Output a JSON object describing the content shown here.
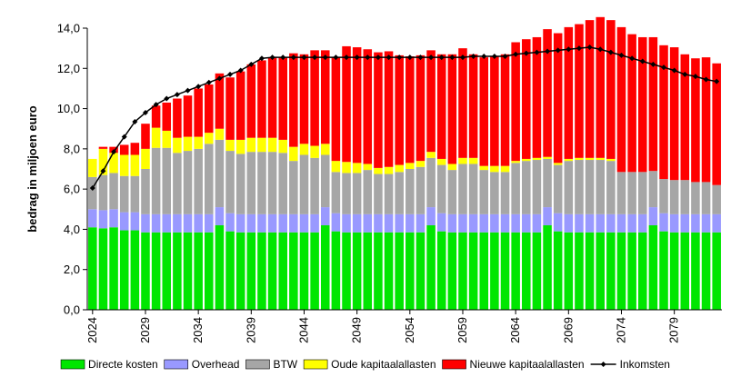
{
  "chart_data": {
    "type": "bar",
    "stacked": true,
    "ylabel": "bedrag in miljoen euro",
    "ylim": [
      0,
      14
    ],
    "y_ticks": [
      "0,0",
      "2,0",
      "4,0",
      "6,0",
      "8,0",
      "10,0",
      "12,0",
      "14,0"
    ],
    "grid": false,
    "legend_position": "bottom",
    "x": [
      2024,
      2025,
      2026,
      2027,
      2028,
      2029,
      2030,
      2031,
      2032,
      2033,
      2034,
      2035,
      2036,
      2037,
      2038,
      2039,
      2040,
      2041,
      2042,
      2043,
      2044,
      2045,
      2046,
      2047,
      2048,
      2049,
      2050,
      2051,
      2052,
      2053,
      2054,
      2055,
      2056,
      2057,
      2058,
      2059,
      2060,
      2061,
      2062,
      2063,
      2064,
      2065,
      2066,
      2067,
      2068,
      2069,
      2070,
      2071,
      2072,
      2073,
      2074,
      2075,
      2076,
      2077,
      2078,
      2079,
      2080,
      2081,
      2082,
      2083
    ],
    "x_tick_labels": [
      "2024",
      "2029",
      "2034",
      "2039",
      "2044",
      "2049",
      "2054",
      "2059",
      "2064",
      "2069",
      "2074",
      "2079"
    ],
    "series": [
      {
        "name": "Directe kosten",
        "color": "#00e600",
        "values": [
          4.1,
          4.05,
          4.1,
          3.95,
          3.95,
          3.85,
          3.85,
          3.85,
          3.85,
          3.85,
          3.85,
          3.85,
          4.2,
          3.9,
          3.85,
          3.85,
          3.85,
          3.85,
          3.85,
          3.85,
          3.85,
          3.85,
          4.2,
          3.9,
          3.85,
          3.85,
          3.85,
          3.85,
          3.85,
          3.85,
          3.85,
          3.85,
          4.2,
          3.9,
          3.85,
          3.85,
          3.85,
          3.85,
          3.85,
          3.85,
          3.85,
          3.85,
          3.85,
          4.2,
          3.9,
          3.85,
          3.85,
          3.85,
          3.85,
          3.85,
          3.85,
          3.85,
          3.85,
          4.2,
          3.9,
          3.85,
          3.85,
          3.85,
          3.85,
          3.85
        ]
      },
      {
        "name": "Overhead",
        "color": "#9999ff",
        "values": [
          0.9,
          0.9,
          0.9,
          0.9,
          0.9,
          0.9,
          0.9,
          0.9,
          0.9,
          0.9,
          0.9,
          0.9,
          0.9,
          0.9,
          0.9,
          0.9,
          0.9,
          0.9,
          0.9,
          0.9,
          0.9,
          0.9,
          0.9,
          0.9,
          0.9,
          0.9,
          0.9,
          0.9,
          0.9,
          0.9,
          0.9,
          0.9,
          0.9,
          0.9,
          0.9,
          0.9,
          0.9,
          0.9,
          0.9,
          0.9,
          0.9,
          0.9,
          0.9,
          0.9,
          0.9,
          0.9,
          0.9,
          0.9,
          0.9,
          0.9,
          0.9,
          0.9,
          0.9,
          0.9,
          0.9,
          0.9,
          0.9,
          0.9,
          0.9,
          0.9
        ]
      },
      {
        "name": "BTW",
        "color": "#a6a6a6",
        "values": [
          1.6,
          1.75,
          1.8,
          1.8,
          1.8,
          2.25,
          3.3,
          3.3,
          3.05,
          3.15,
          3.25,
          3.5,
          3.35,
          3.1,
          3.0,
          3.1,
          3.1,
          3.1,
          3.05,
          2.65,
          2.95,
          2.8,
          2.6,
          2.05,
          2.05,
          2.05,
          2.2,
          2.0,
          2.0,
          2.1,
          2.25,
          2.35,
          2.45,
          2.4,
          2.2,
          2.5,
          2.5,
          2.2,
          2.1,
          2.1,
          2.55,
          2.65,
          2.7,
          2.4,
          2.4,
          2.65,
          2.7,
          2.7,
          2.7,
          2.65,
          2.1,
          2.1,
          2.1,
          1.8,
          1.7,
          1.7,
          1.7,
          1.6,
          1.6,
          1.45
        ]
      },
      {
        "name": "Oude kapitaalallasten",
        "color": "#ffff00",
        "values": [
          0.9,
          1.3,
          1.0,
          1.05,
          1.05,
          1.0,
          1.0,
          0.85,
          0.75,
          0.7,
          0.6,
          0.55,
          0.55,
          0.55,
          0.7,
          0.7,
          0.7,
          0.7,
          0.65,
          0.7,
          0.55,
          0.6,
          0.55,
          0.55,
          0.55,
          0.5,
          0.3,
          0.3,
          0.35,
          0.35,
          0.3,
          0.3,
          0.3,
          0.3,
          0.3,
          0.3,
          0.3,
          0.2,
          0.3,
          0.3,
          0.1,
          0.1,
          0.1,
          0.1,
          0.1,
          0.1,
          0.1,
          0.1,
          0.1,
          0.1,
          0.0,
          0.0,
          0.0,
          0.0,
          0.0,
          0.0,
          0.0,
          0.0,
          0.0,
          0.0
        ]
      },
      {
        "name": "Nieuwe kapitaalallasten",
        "color": "#ff0000",
        "values": [
          0.0,
          0.1,
          0.3,
          0.5,
          0.6,
          1.25,
          1.1,
          1.4,
          1.95,
          2.05,
          2.4,
          2.4,
          2.75,
          3.1,
          3.4,
          3.65,
          3.85,
          4.0,
          4.1,
          4.65,
          4.45,
          4.75,
          4.65,
          5.15,
          5.75,
          5.75,
          5.7,
          5.75,
          5.75,
          5.45,
          5.3,
          5.25,
          5.05,
          5.2,
          5.45,
          5.45,
          5.15,
          5.4,
          5.45,
          5.55,
          5.9,
          5.95,
          6.0,
          6.35,
          6.45,
          6.55,
          6.65,
          6.85,
          7.0,
          6.9,
          7.2,
          6.85,
          6.7,
          6.65,
          6.65,
          6.6,
          6.25,
          6.15,
          6.2,
          6.05
        ]
      }
    ],
    "line_series": {
      "name": "Inkomsten",
      "color": "#000000",
      "values": [
        6.05,
        6.9,
        7.85,
        8.6,
        9.35,
        9.8,
        10.2,
        10.5,
        10.7,
        10.9,
        11.1,
        11.3,
        11.5,
        11.7,
        11.9,
        12.2,
        12.5,
        12.55,
        12.55,
        12.55,
        12.55,
        12.55,
        12.55,
        12.55,
        12.55,
        12.55,
        12.55,
        12.55,
        12.55,
        12.55,
        12.55,
        12.55,
        12.55,
        12.55,
        12.55,
        12.55,
        12.6,
        12.6,
        12.6,
        12.6,
        12.7,
        12.75,
        12.8,
        12.85,
        12.9,
        12.95,
        13.0,
        13.05,
        12.95,
        12.8,
        12.65,
        12.5,
        12.35,
        12.2,
        12.05,
        11.9,
        11.7,
        11.6,
        11.45,
        11.35
      ]
    }
  },
  "legend": {
    "items": [
      {
        "label": "Directe kosten",
        "color": "#00e600",
        "kind": "box"
      },
      {
        "label": "Overhead",
        "color": "#9999ff",
        "kind": "box"
      },
      {
        "label": "BTW",
        "color": "#a6a6a6",
        "kind": "box"
      },
      {
        "label": "Oude kapitaalallasten",
        "color": "#ffff00",
        "kind": "box"
      },
      {
        "label": "Nieuwe kapitaalallasten",
        "color": "#ff0000",
        "kind": "box"
      },
      {
        "label": "Inkomsten",
        "color": "#000000",
        "kind": "line-marker"
      }
    ]
  }
}
